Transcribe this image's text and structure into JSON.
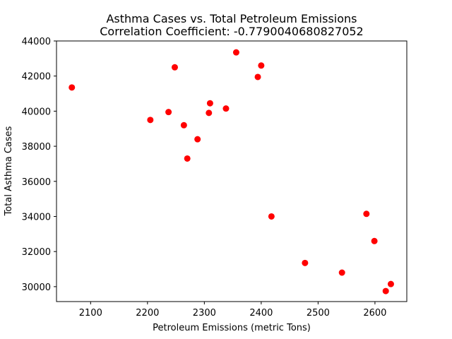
{
  "chart_data": {
    "type": "scatter",
    "title": "Asthma Cases vs. Total Petroleum Emissions",
    "subtitle": "Correlation Coefficient: -0.7790040680827052",
    "xlabel": "Petroleum Emissions (metric Tons)",
    "ylabel": "Total Asthma Cases",
    "xlim": [
      2040,
      2656
    ],
    "ylim": [
      29150,
      44000
    ],
    "xticks": [
      2100,
      2200,
      2300,
      2400,
      2500,
      2600
    ],
    "yticks": [
      30000,
      32000,
      34000,
      36000,
      38000,
      40000,
      42000,
      44000
    ],
    "grid": false,
    "marker_color": "#ff0000",
    "points": [
      {
        "x": 2067,
        "y": 41350
      },
      {
        "x": 2205,
        "y": 39500
      },
      {
        "x": 2237,
        "y": 39950
      },
      {
        "x": 2248,
        "y": 42500
      },
      {
        "x": 2264,
        "y": 39200
      },
      {
        "x": 2270,
        "y": 37300
      },
      {
        "x": 2288,
        "y": 38400
      },
      {
        "x": 2308,
        "y": 39900
      },
      {
        "x": 2310,
        "y": 40450
      },
      {
        "x": 2338,
        "y": 40150
      },
      {
        "x": 2356,
        "y": 43350
      },
      {
        "x": 2394,
        "y": 41950
      },
      {
        "x": 2400,
        "y": 42600
      },
      {
        "x": 2418,
        "y": 34000
      },
      {
        "x": 2477,
        "y": 31350
      },
      {
        "x": 2542,
        "y": 30800
      },
      {
        "x": 2585,
        "y": 34150
      },
      {
        "x": 2599,
        "y": 32600
      },
      {
        "x": 2619,
        "y": 29750
      },
      {
        "x": 2628,
        "y": 30150
      }
    ]
  }
}
